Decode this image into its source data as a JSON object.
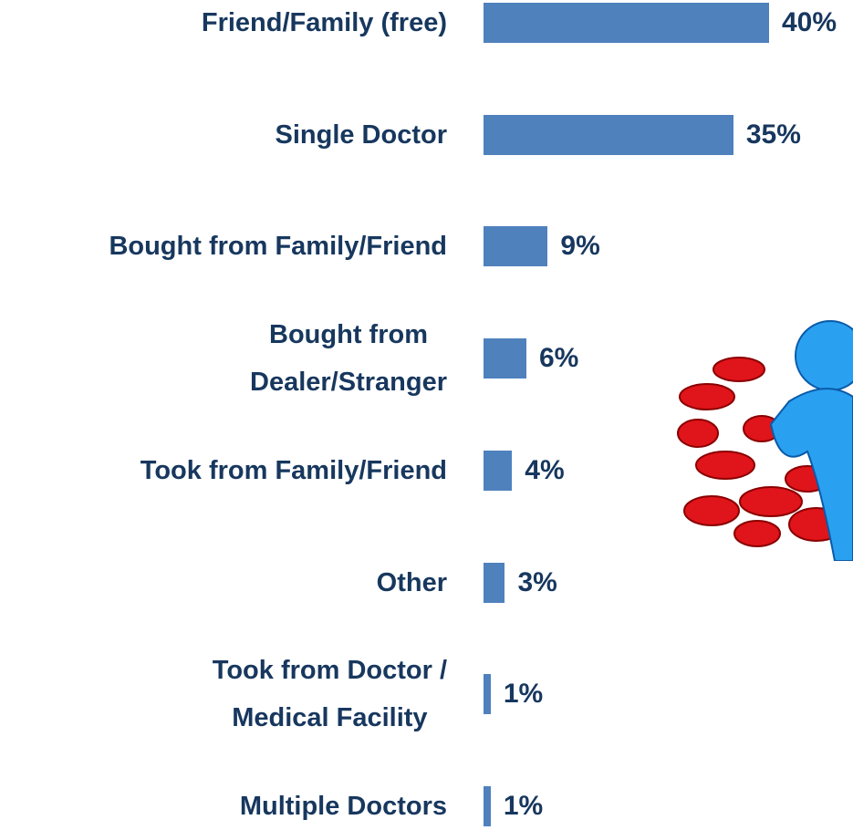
{
  "chart_data": {
    "type": "bar",
    "orientation": "horizontal",
    "categories": [
      "Friend/Family (free)",
      "Single Doctor",
      "Bought from Family/Friend",
      "Bought from\nDealer/Stranger",
      "Took from Family/Friend",
      "Other",
      "Took from Doctor /\nMedical Facility",
      "Multiple Doctors"
    ],
    "values": [
      40,
      35,
      9,
      6,
      4,
      3,
      1,
      1
    ],
    "value_labels": [
      "40%",
      "35%",
      "9%",
      "6%",
      "4%",
      "3%",
      "1%",
      "1%"
    ],
    "color": "#4f81bd"
  }
}
